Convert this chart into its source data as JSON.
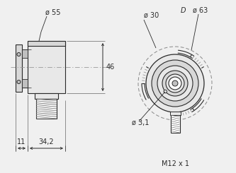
{
  "bg_color": "#f0f0f0",
  "line_color": "#2a2a2a",
  "fill_light": "#e8e8e8",
  "fill_mid": "#d8d8d8",
  "fill_dark": "#c0c0c0",
  "fill_inner": "#b0b0b0",
  "annotations": {
    "phi55": "ø 55",
    "phi30": "ø 30",
    "phi63": "ø 63",
    "phi31": "ø 3,1",
    "D": "D",
    "dim46": "46",
    "dim11": "11",
    "dim342": "34,2",
    "M12": "M12 x 1"
  },
  "font_size": 7.0
}
